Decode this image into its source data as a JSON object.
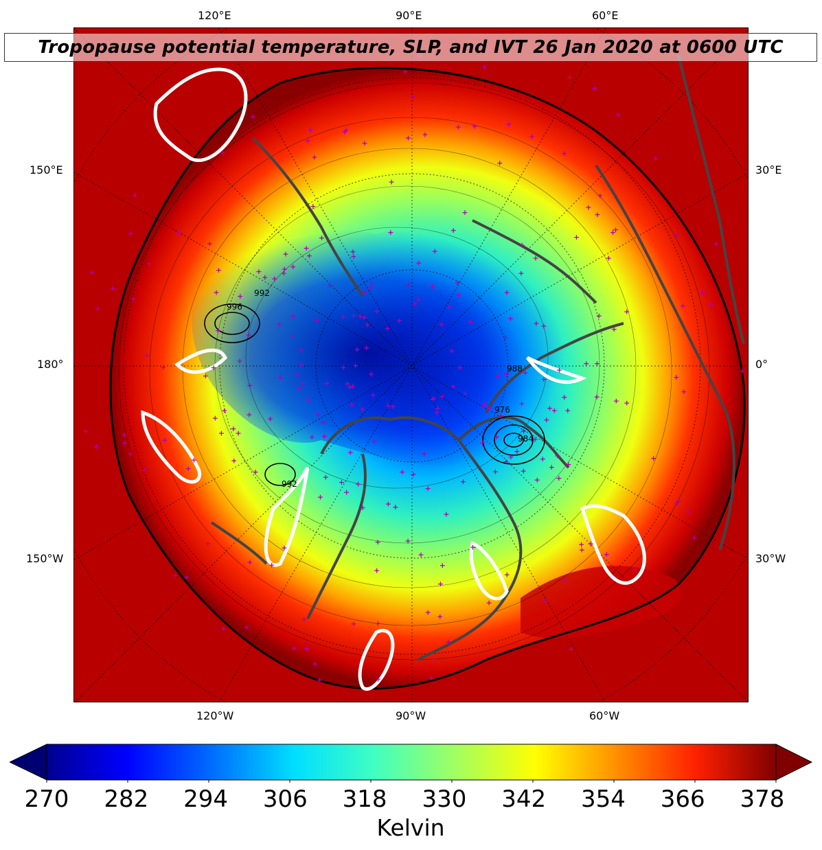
{
  "title": "Tropopause potential temperature, SLP, and IVT 26 Jan 2020 at 0600 UTC",
  "map": {
    "projection": "north-polar-stereographic",
    "graticule": "dotted",
    "coastline_color": "#444444",
    "ivt_contour_color": "#ffffff",
    "station_marker_color": "#b000b0",
    "station_marker": "+",
    "slp_contour_labels": [
      "992",
      "996",
      "988",
      "984",
      "976",
      "992"
    ],
    "lon_labels": {
      "top": [
        "120°E",
        "90°E",
        "60°E"
      ],
      "bottom": [
        "120°W",
        "90°W",
        "60°W"
      ],
      "left": [
        "150°E",
        "180°",
        "150°W"
      ],
      "right": [
        "30°E",
        "0°",
        "30°W"
      ]
    }
  },
  "colorbar": {
    "min": 270,
    "max": 378,
    "extend": "both",
    "colormap": "jet",
    "ticks": [
      "270",
      "282",
      "294",
      "306",
      "318",
      "330",
      "342",
      "354",
      "366",
      "378"
    ],
    "label": "Kelvin"
  }
}
